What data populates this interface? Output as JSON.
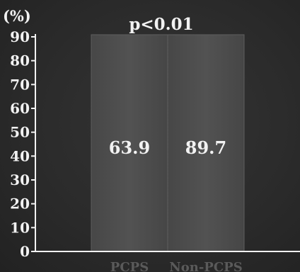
{
  "chart_data": {
    "type": "bar",
    "title": "",
    "xlabel": "",
    "ylabel": "(%)",
    "ylim": [
      0,
      90
    ],
    "yticks": [
      0,
      10,
      20,
      30,
      40,
      50,
      60,
      70,
      80,
      90
    ],
    "categories": [
      "PCPS",
      "Non-PCPS"
    ],
    "values": [
      63.9,
      89.7
    ],
    "value_labels": [
      "63.9",
      "89.7"
    ],
    "annotation": "p<0.01",
    "grid": false,
    "legend": "none",
    "colors": {
      "background": "#2b2b2b",
      "bar": "#4d4d4d",
      "text": "#f2f2f2",
      "axis": "#f2f2f2",
      "category_label": "#5a5a5a"
    }
  }
}
